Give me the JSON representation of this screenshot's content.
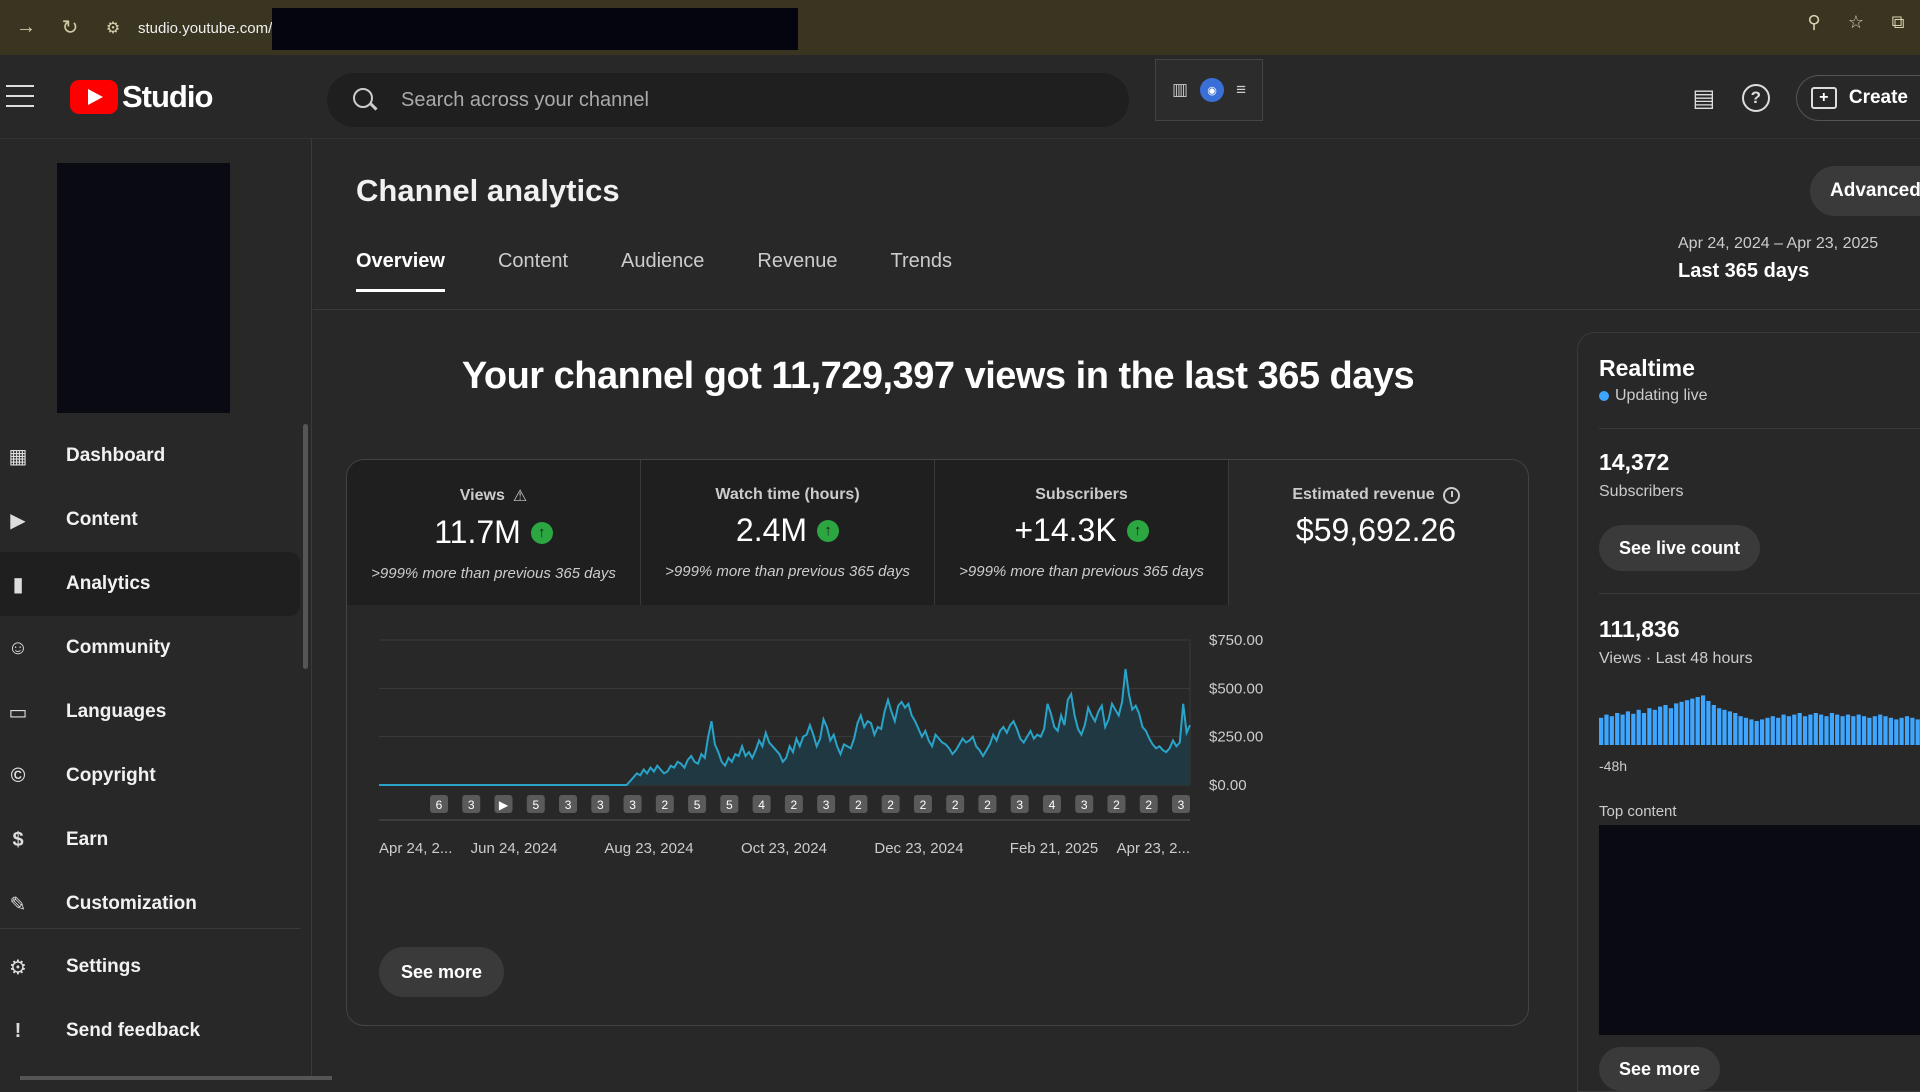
{
  "browser": {
    "url": "studio.youtube.com/"
  },
  "header": {
    "logo_text": "Studio",
    "search_placeholder": "Search across your channel",
    "create_label": "Create"
  },
  "sidebar": {
    "items": [
      {
        "label": "Dashboard",
        "icon": "dashboard-icon"
      },
      {
        "label": "Content",
        "icon": "content-icon"
      },
      {
        "label": "Analytics",
        "icon": "analytics-icon",
        "active": true
      },
      {
        "label": "Community",
        "icon": "community-icon"
      },
      {
        "label": "Languages",
        "icon": "languages-icon"
      },
      {
        "label": "Copyright",
        "icon": "copyright-icon"
      },
      {
        "label": "Earn",
        "icon": "earn-icon"
      },
      {
        "label": "Customization",
        "icon": "customization-icon"
      }
    ],
    "bottom": [
      {
        "label": "Settings",
        "icon": "settings-icon"
      },
      {
        "label": "Send feedback",
        "icon": "feedback-icon"
      }
    ]
  },
  "main": {
    "title": "Channel analytics",
    "advanced_label": "Advanced mode",
    "tabs": [
      "Overview",
      "Content",
      "Audience",
      "Revenue",
      "Trends"
    ],
    "date_range": "Apr 24, 2024 – Apr 23, 2025",
    "date_label": "Last 365 days",
    "headline": "Your channel got 11,729,397 views in the last 365 days",
    "metrics": [
      {
        "label": "Views",
        "value": "11.7M",
        "delta": ">999% more than previous 365 days"
      },
      {
        "label": "Watch time (hours)",
        "value": "2.4M",
        "delta": ">999% more than previous 365 days"
      },
      {
        "label": "Subscribers",
        "value": "+14.3K",
        "delta": ">999% more than previous 365 days"
      },
      {
        "label": "Estimated revenue",
        "value": "$59,692.26"
      }
    ],
    "see_more": "See more"
  },
  "chart_data": {
    "type": "area",
    "y_ticks": [
      "$750.00",
      "$500.00",
      "$250.00",
      "$0.00"
    ],
    "ylim": [
      0,
      750
    ],
    "x_ticks": [
      "Apr 24, 2...",
      "Jun 24, 2024",
      "Aug 23, 2024",
      "Oct 23, 2024",
      "Dec 23, 2024",
      "Feb 21, 2025",
      "Apr 23, 2..."
    ],
    "upload_markers": [
      "6",
      "3",
      "▶",
      "5",
      "3",
      "3",
      "3",
      "2",
      "5",
      "5",
      "4",
      "2",
      "3",
      "2",
      "2",
      "2",
      "2",
      "2",
      "3",
      "4",
      "3",
      "2",
      "2",
      "3"
    ],
    "values": [
      0,
      0,
      0,
      0,
      0,
      0,
      0,
      0,
      0,
      0,
      0,
      0,
      0,
      0,
      0,
      0,
      0,
      0,
      0,
      0,
      0,
      0,
      0,
      0,
      0,
      0,
      0,
      0,
      0,
      0,
      0,
      0,
      0,
      0,
      0,
      0,
      0,
      0,
      0,
      0,
      0,
      0,
      0,
      0,
      0,
      0,
      0,
      0,
      0,
      0,
      0,
      0,
      0,
      0,
      0,
      0,
      0,
      0,
      0,
      0,
      0,
      0,
      0,
      0,
      0,
      0,
      0,
      0,
      0,
      0,
      0,
      0,
      0,
      0,
      20,
      40,
      60,
      50,
      80,
      60,
      90,
      70,
      100,
      80,
      60,
      70,
      100,
      90,
      120,
      110,
      90,
      130,
      150,
      120,
      110,
      160,
      140,
      250,
      330,
      210,
      170,
      120,
      100,
      140,
      120,
      160,
      150,
      200,
      150,
      170,
      140,
      180,
      230,
      200,
      270,
      220,
      200,
      180,
      160,
      120,
      140,
      200,
      170,
      240,
      200,
      250,
      260,
      310,
      260,
      200,
      240,
      340,
      300,
      230,
      260,
      200,
      160,
      210,
      200,
      190,
      240,
      320,
      360,
      300,
      330,
      320,
      260,
      300,
      290,
      380,
      440,
      380,
      330,
      410,
      430,
      400,
      420,
      360,
      330,
      290,
      250,
      280,
      230,
      200,
      260,
      240,
      220,
      210,
      190,
      160,
      180,
      210,
      240,
      220,
      230,
      250,
      200,
      180,
      150,
      180,
      210,
      260,
      230,
      280,
      300,
      270,
      310,
      330,
      290,
      240,
      220,
      250,
      280,
      240,
      260,
      250,
      290,
      420,
      370,
      300,
      280,
      360,
      310,
      440,
      470,
      360,
      290,
      260,
      310,
      400,
      360,
      330,
      380,
      410,
      300,
      340,
      420,
      390,
      360,
      430,
      600,
      470,
      390,
      410,
      370,
      300,
      280,
      240,
      210,
      190,
      200,
      180,
      170,
      190,
      230,
      200,
      220,
      420,
      270,
      310
    ]
  },
  "realtime": {
    "title": "Realtime",
    "status": "Updating live",
    "subs_value": "14,372",
    "subs_label": "Subscribers",
    "live_count": "See live count",
    "views_value": "111,836",
    "views_label": "Views · Last 48 hours",
    "axis_label": "-48h",
    "top_content": "Top content",
    "see_more": "See more",
    "bars": [
      34,
      38,
      36,
      40,
      38,
      42,
      39,
      44,
      40,
      46,
      44,
      48,
      50,
      46,
      52,
      54,
      56,
      58,
      60,
      62,
      55,
      50,
      46,
      44,
      42,
      40,
      36,
      34,
      32,
      30,
      32,
      34,
      36,
      34,
      38,
      36,
      38,
      40,
      36,
      38,
      40,
      38,
      36,
      40,
      38,
      36,
      38,
      36,
      38,
      36,
      34,
      36,
      38,
      36,
      34,
      32,
      34,
      36,
      34,
      32
    ],
    "accent": "#3ea6ff"
  }
}
